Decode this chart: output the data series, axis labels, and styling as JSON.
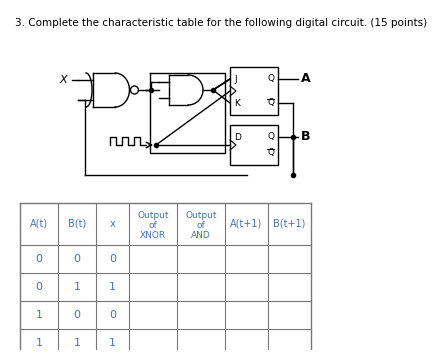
{
  "title": "3. Complete the characteristic table for the following digital circuit. (15 points)",
  "title_fontsize": 7.5,
  "col_headers_line1": [
    "A(t)",
    "B(t)",
    "x",
    "Output",
    "Output",
    "A(t+1)",
    "B(t+1)"
  ],
  "col_headers_line2": [
    "",
    "",
    "",
    "of",
    "of",
    "",
    ""
  ],
  "col_headers_line3": [
    "",
    "",
    "",
    "XNOR",
    "AND",
    "",
    ""
  ],
  "rows": [
    [
      "0",
      "0",
      "0",
      "",
      "",
      "",
      ""
    ],
    [
      "0",
      "1",
      "1",
      "",
      "",
      "",
      ""
    ],
    [
      "1",
      "0",
      "0",
      "",
      "",
      "",
      ""
    ],
    [
      "1",
      "1",
      "1",
      "",
      "",
      "",
      ""
    ]
  ],
  "bg_color": "#ffffff",
  "text_color": "#000000",
  "grid_color": "#777777",
  "circuit_color": "#000000",
  "table_text_color": "#4472c4"
}
